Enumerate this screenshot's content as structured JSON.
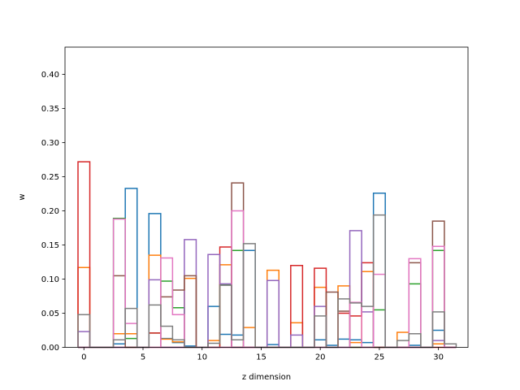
{
  "chart_data": {
    "type": "bar",
    "style": "step-outline histogram",
    "xlabel": "z dimension",
    "ylabel": "w",
    "xlim": [
      -1.6,
      32.5
    ],
    "ylim": [
      0,
      0.44
    ],
    "x_ticks": [
      0,
      5,
      10,
      15,
      20,
      25,
      30
    ],
    "x_tick_labels": [
      "0",
      "5",
      "10",
      "15",
      "20",
      "25",
      "30"
    ],
    "y_ticks": [
      0,
      0.05,
      0.1,
      0.15,
      0.2,
      0.25,
      0.3,
      0.35,
      0.4
    ],
    "y_tick_labels": [
      "0.00",
      "0.05",
      "0.10",
      "0.15",
      "0.20",
      "0.25",
      "0.30",
      "0.35",
      "0.40"
    ],
    "bin_width": 1,
    "grid": false,
    "series": [
      {
        "color": "#1f77b4",
        "values": [
          0,
          0,
          0,
          0.005,
          0.233,
          0,
          0.196,
          0.013,
          0.007,
          0.002,
          0,
          0.06,
          0.019,
          0.018,
          0.142,
          0,
          0.004,
          0,
          0,
          0,
          0.011,
          0.003,
          0.012,
          0.011,
          0.007,
          0.226,
          0,
          0,
          0.003,
          0,
          0.025,
          0
        ]
      },
      {
        "color": "#ff7f0e",
        "values": [
          0.117,
          0,
          0,
          0.02,
          0.02,
          0,
          0.135,
          0.012,
          0.008,
          0.101,
          0,
          0.01,
          0.121,
          0,
          0.029,
          0,
          0.113,
          0,
          0.036,
          0,
          0.088,
          0,
          0.09,
          0.007,
          0.111,
          0,
          0,
          0.022,
          0,
          0,
          0.005,
          0
        ]
      },
      {
        "color": "#2ca02c",
        "values": [
          0,
          0,
          0,
          0.189,
          0.013,
          0,
          0.021,
          0.097,
          0.058,
          0,
          0,
          0,
          0.092,
          0.142,
          0,
          0,
          0,
          0,
          0,
          0,
          0,
          0,
          0,
          0,
          0,
          0.055,
          0,
          0,
          0.093,
          0,
          0.142,
          0
        ]
      },
      {
        "color": "#d62728",
        "values": [
          0.272,
          0,
          0,
          0,
          0,
          0,
          0.021,
          0,
          0,
          0,
          0,
          0,
          0.147,
          0,
          0,
          0,
          0,
          0,
          0.12,
          0,
          0.116,
          0,
          0.05,
          0.046,
          0.124,
          0,
          0,
          0,
          0,
          0,
          0,
          0
        ]
      },
      {
        "color": "#9467bd",
        "values": [
          0.023,
          0,
          0,
          0,
          0,
          0,
          0.099,
          0,
          0,
          0.158,
          0,
          0.136,
          0.093,
          0,
          0,
          0,
          0.098,
          0,
          0.018,
          0,
          0.06,
          0,
          0,
          0.171,
          0.052,
          0,
          0,
          0,
          0,
          0,
          0.01,
          0
        ]
      },
      {
        "color": "#8c564b",
        "values": [
          0,
          0,
          0,
          0.105,
          0,
          0,
          0,
          0.074,
          0.084,
          0.105,
          0,
          0,
          0,
          0.241,
          0,
          0,
          0,
          0,
          0,
          0,
          0,
          0.081,
          0.053,
          0,
          0,
          0,
          0,
          0,
          0.124,
          0,
          0.185,
          0
        ]
      },
      {
        "color": "#e377c2",
        "values": [
          0,
          0,
          0,
          0.188,
          0.035,
          0,
          0,
          0.131,
          0.048,
          0,
          0,
          0,
          0,
          0.2,
          0,
          0,
          0,
          0,
          0,
          0,
          0,
          0,
          0,
          0.066,
          0,
          0.107,
          0,
          0,
          0.13,
          0,
          0.148,
          0
        ]
      },
      {
        "color": "#7f7f7f",
        "values": [
          0.048,
          0,
          0,
          0.011,
          0.057,
          0,
          0.062,
          0.031,
          0.011,
          0,
          0,
          0.006,
          0.091,
          0.011,
          0.152,
          0,
          0,
          0,
          0,
          0,
          0.046,
          0,
          0.071,
          0.065,
          0.06,
          0.194,
          0,
          0.01,
          0.02,
          0,
          0.052,
          0.005
        ]
      }
    ]
  }
}
